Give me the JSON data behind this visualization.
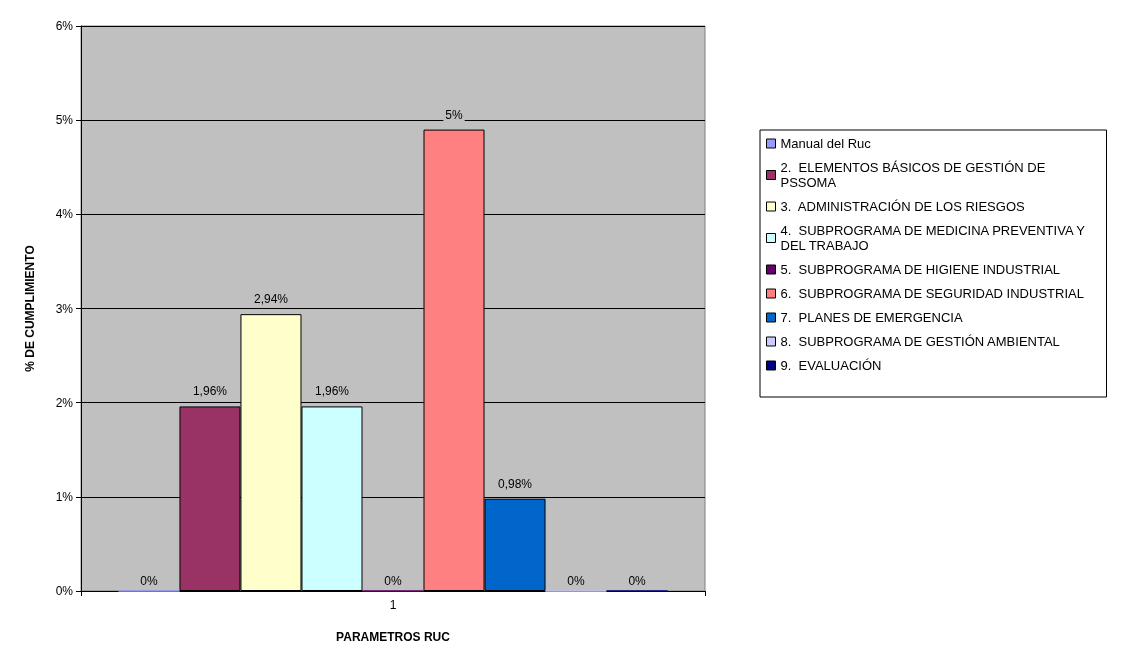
{
  "chart_data": {
    "type": "bar",
    "xlabel": "PARAMETROS RUC",
    "ylabel": "% DE CUMPLIMIENTO",
    "categories": [
      "1"
    ],
    "series": [
      {
        "name": "Manual del Ruc",
        "color": "#9999ff",
        "values": [
          0
        ],
        "value_labels": [
          "0%"
        ]
      },
      {
        "name": "2.  ELEMENTOS BÁSICOS DE GESTIÓN DE PSSOMA",
        "color": "#993366",
        "values": [
          1.96
        ],
        "value_labels": [
          "1,96%"
        ]
      },
      {
        "name": "3.  ADMINISTRACIÓN DE LOS RIESGOS",
        "color": "#ffffcc",
        "values": [
          2.94
        ],
        "value_labels": [
          "2,94%"
        ]
      },
      {
        "name": "4.  SUBPROGRAMA DE MEDICINA PREVENTIVA Y DEL TRABAJO",
        "color": "#ccffff",
        "values": [
          1.96
        ],
        "value_labels": [
          "1,96%"
        ]
      },
      {
        "name": "5.  SUBPROGRAMA DE HIGIENE INDUSTRIAL",
        "color": "#660066",
        "values": [
          0
        ],
        "value_labels": [
          "0%"
        ]
      },
      {
        "name": "6.  SUBPROGRAMA DE SEGURIDAD INDUSTRIAL",
        "color": "#ff8080",
        "values": [
          4.9
        ],
        "value_labels": [
          "5%"
        ]
      },
      {
        "name": "7.  PLANES DE EMERGENCIA",
        "color": "#0066cc",
        "values": [
          0.98
        ],
        "value_labels": [
          "0,98%"
        ]
      },
      {
        "name": "8.  SUBPROGRAMA DE GESTIÓN AMBIENTAL",
        "color": "#ccccff",
        "values": [
          0
        ],
        "value_labels": [
          "0%"
        ]
      },
      {
        "name": "9.  EVALUACIÓN",
        "color": "#000080",
        "values": [
          0
        ],
        "value_labels": [
          "0%"
        ]
      }
    ],
    "ylim": [
      0,
      6
    ],
    "yticks": [
      {
        "value": 0,
        "label": "0%"
      },
      {
        "value": 1,
        "label": "1%"
      },
      {
        "value": 2,
        "label": "2%"
      },
      {
        "value": 3,
        "label": "3%"
      },
      {
        "value": 4,
        "label": "4%"
      },
      {
        "value": 5,
        "label": "5%"
      },
      {
        "value": 6,
        "label": "6%"
      }
    ],
    "grid": "y",
    "legend": "right"
  }
}
